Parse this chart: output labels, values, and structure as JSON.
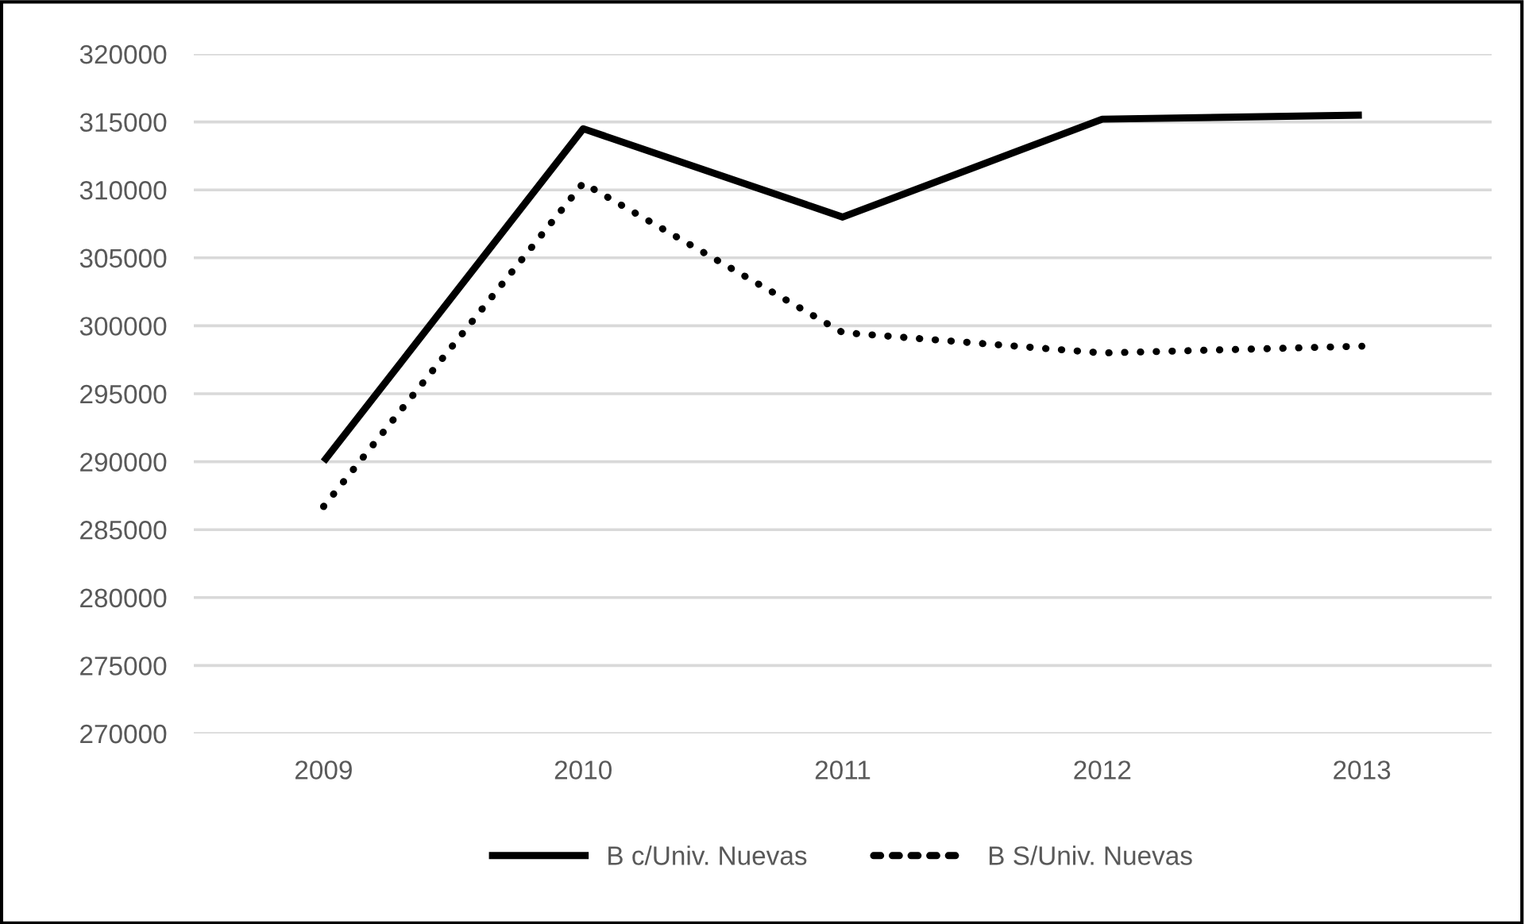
{
  "chart_data": {
    "type": "line",
    "categories": [
      "2009",
      "2010",
      "2011",
      "2012",
      "2013"
    ],
    "series": [
      {
        "name": "B c/Univ. Nuevas",
        "color": "#000000",
        "line_style": "solid",
        "values": [
          290000,
          314500,
          308000,
          315200,
          315500
        ]
      },
      {
        "name": "B S/Univ. Nuevas",
        "color": "#000000",
        "line_style": "dotted",
        "values": [
          286700,
          310500,
          299500,
          298000,
          298500
        ]
      }
    ],
    "ylim": [
      270000,
      320000
    ],
    "yticks": [
      270000,
      275000,
      280000,
      285000,
      290000,
      295000,
      300000,
      305000,
      310000,
      315000,
      320000
    ],
    "grid": "y",
    "legend": "bottom",
    "marker": "none"
  }
}
